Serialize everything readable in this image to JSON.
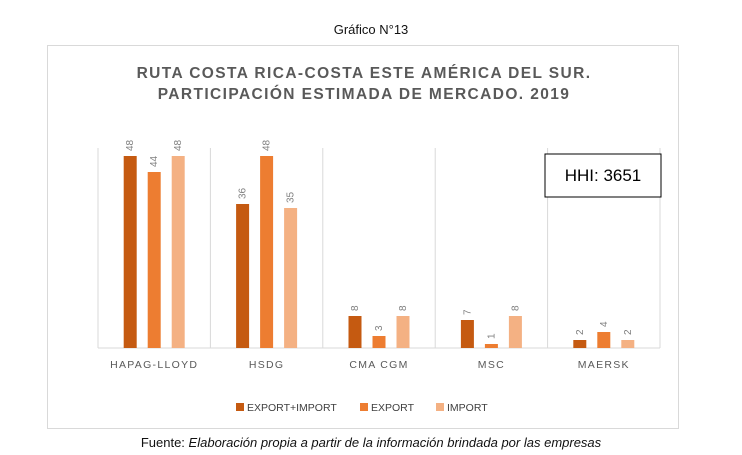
{
  "figure_label": "Gráfico N°13",
  "source": {
    "prefix": "Fuente:",
    "text": "Elaboración propia a partir de la información brindada por las empresas"
  },
  "hhi_label": "HHI: 3651",
  "colors": {
    "EXPORT+IMPORT": "#c55a11",
    "EXPORT": "#ed7d31",
    "IMPORT": "#f4b183"
  },
  "chart_data": {
    "type": "bar",
    "title": [
      "RUTA COSTA RICA-COSTA ESTE AMÉRICA DEL SUR.",
      "PARTICIPACIÓN ESTIMADA DE MERCADO. 2019"
    ],
    "categories": [
      "HAPAG-LLOYD",
      "HSDG",
      "CMA CGM",
      "MSC",
      "MAERSK"
    ],
    "series": [
      {
        "name": "EXPORT+IMPORT",
        "values": [
          48,
          36,
          8,
          7,
          2
        ]
      },
      {
        "name": "EXPORT",
        "values": [
          44,
          48,
          3,
          1,
          4
        ]
      },
      {
        "name": "IMPORT",
        "values": [
          48,
          35,
          8,
          8,
          2
        ]
      }
    ],
    "ylim": [
      0,
      50
    ],
    "data_labels": true,
    "legend_position": "bottom",
    "grid": "vertical category separators"
  }
}
